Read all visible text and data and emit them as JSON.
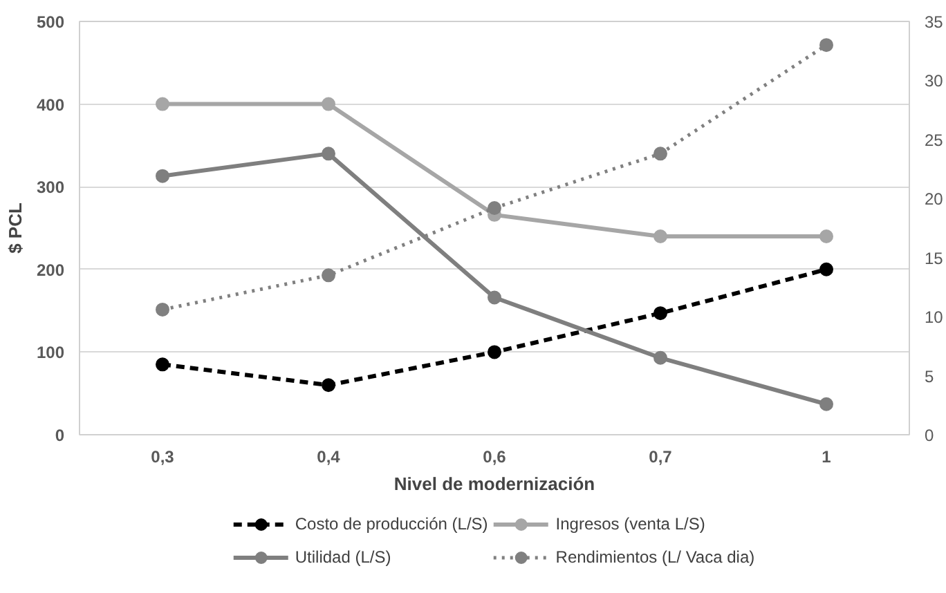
{
  "chart_data": {
    "type": "line",
    "xlabel": "Nivel de modernización",
    "ylabel": "$ PCL",
    "categories": [
      "0,3",
      "0,4",
      "0,6",
      "0,7",
      "1"
    ],
    "series": [
      {
        "name": "Costo de producción (L/S)",
        "color": "#000000",
        "line_style": "dashed",
        "values": [
          85,
          60,
          100,
          147,
          200
        ]
      },
      {
        "name": "Ingresos (venta L/S)",
        "color": "#a6a6a6",
        "line_style": "solid",
        "values": [
          400,
          400,
          266,
          240,
          240
        ]
      },
      {
        "name": "Utilidad (L/S)",
        "color": "#7f7f7f",
        "line_style": "solid",
        "values": [
          313,
          340,
          166,
          93,
          37
        ]
      },
      {
        "name": "Rendimientos (L/ Vaca dia)",
        "color": "#808080",
        "line_style": "dotted",
        "axis": "y2",
        "values": [
          10.6,
          13.5,
          19.2,
          23.8,
          33.0
        ]
      }
    ],
    "ylim": [
      0,
      500
    ],
    "yticks": [
      0,
      100,
      200,
      300,
      400,
      500
    ],
    "y2lim": [
      0,
      35
    ],
    "y2ticks": [
      0,
      5,
      10,
      15,
      20,
      25,
      30,
      35
    ],
    "grid": "y",
    "legend": "bottom",
    "marker": "circle"
  }
}
